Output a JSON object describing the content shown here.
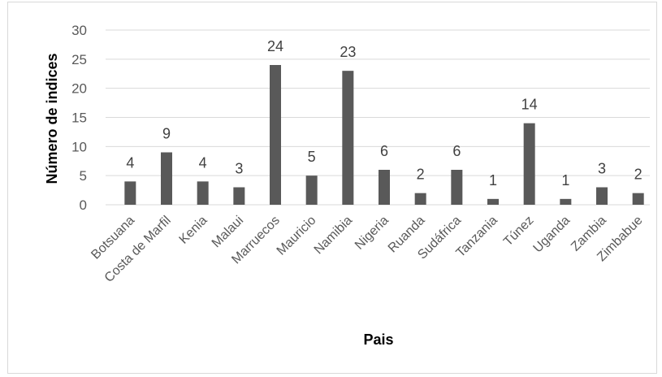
{
  "chart_data": {
    "type": "bar",
    "title": "",
    "xlabel": "Pais",
    "ylabel": "Número de indices",
    "categories": [
      "Botsuana",
      "Costa de Marfil",
      "Kenia",
      "Malaui",
      "Marruecos",
      "Mauricio",
      "Namibia",
      "Nigeria",
      "Ruanda",
      "Sudáfrica",
      "Tanzania",
      "Túnez",
      "Uganda",
      "Zambia",
      "Zimbabue"
    ],
    "values": [
      4,
      9,
      4,
      3,
      24,
      5,
      23,
      6,
      2,
      6,
      1,
      14,
      1,
      3,
      2
    ],
    "ylim": [
      0,
      30
    ],
    "yticks": [
      0,
      5,
      10,
      15,
      20,
      25,
      30
    ],
    "grid": true,
    "legend": "none",
    "colors": {
      "bar": "#595959",
      "grid": "#d9d9d9"
    }
  }
}
